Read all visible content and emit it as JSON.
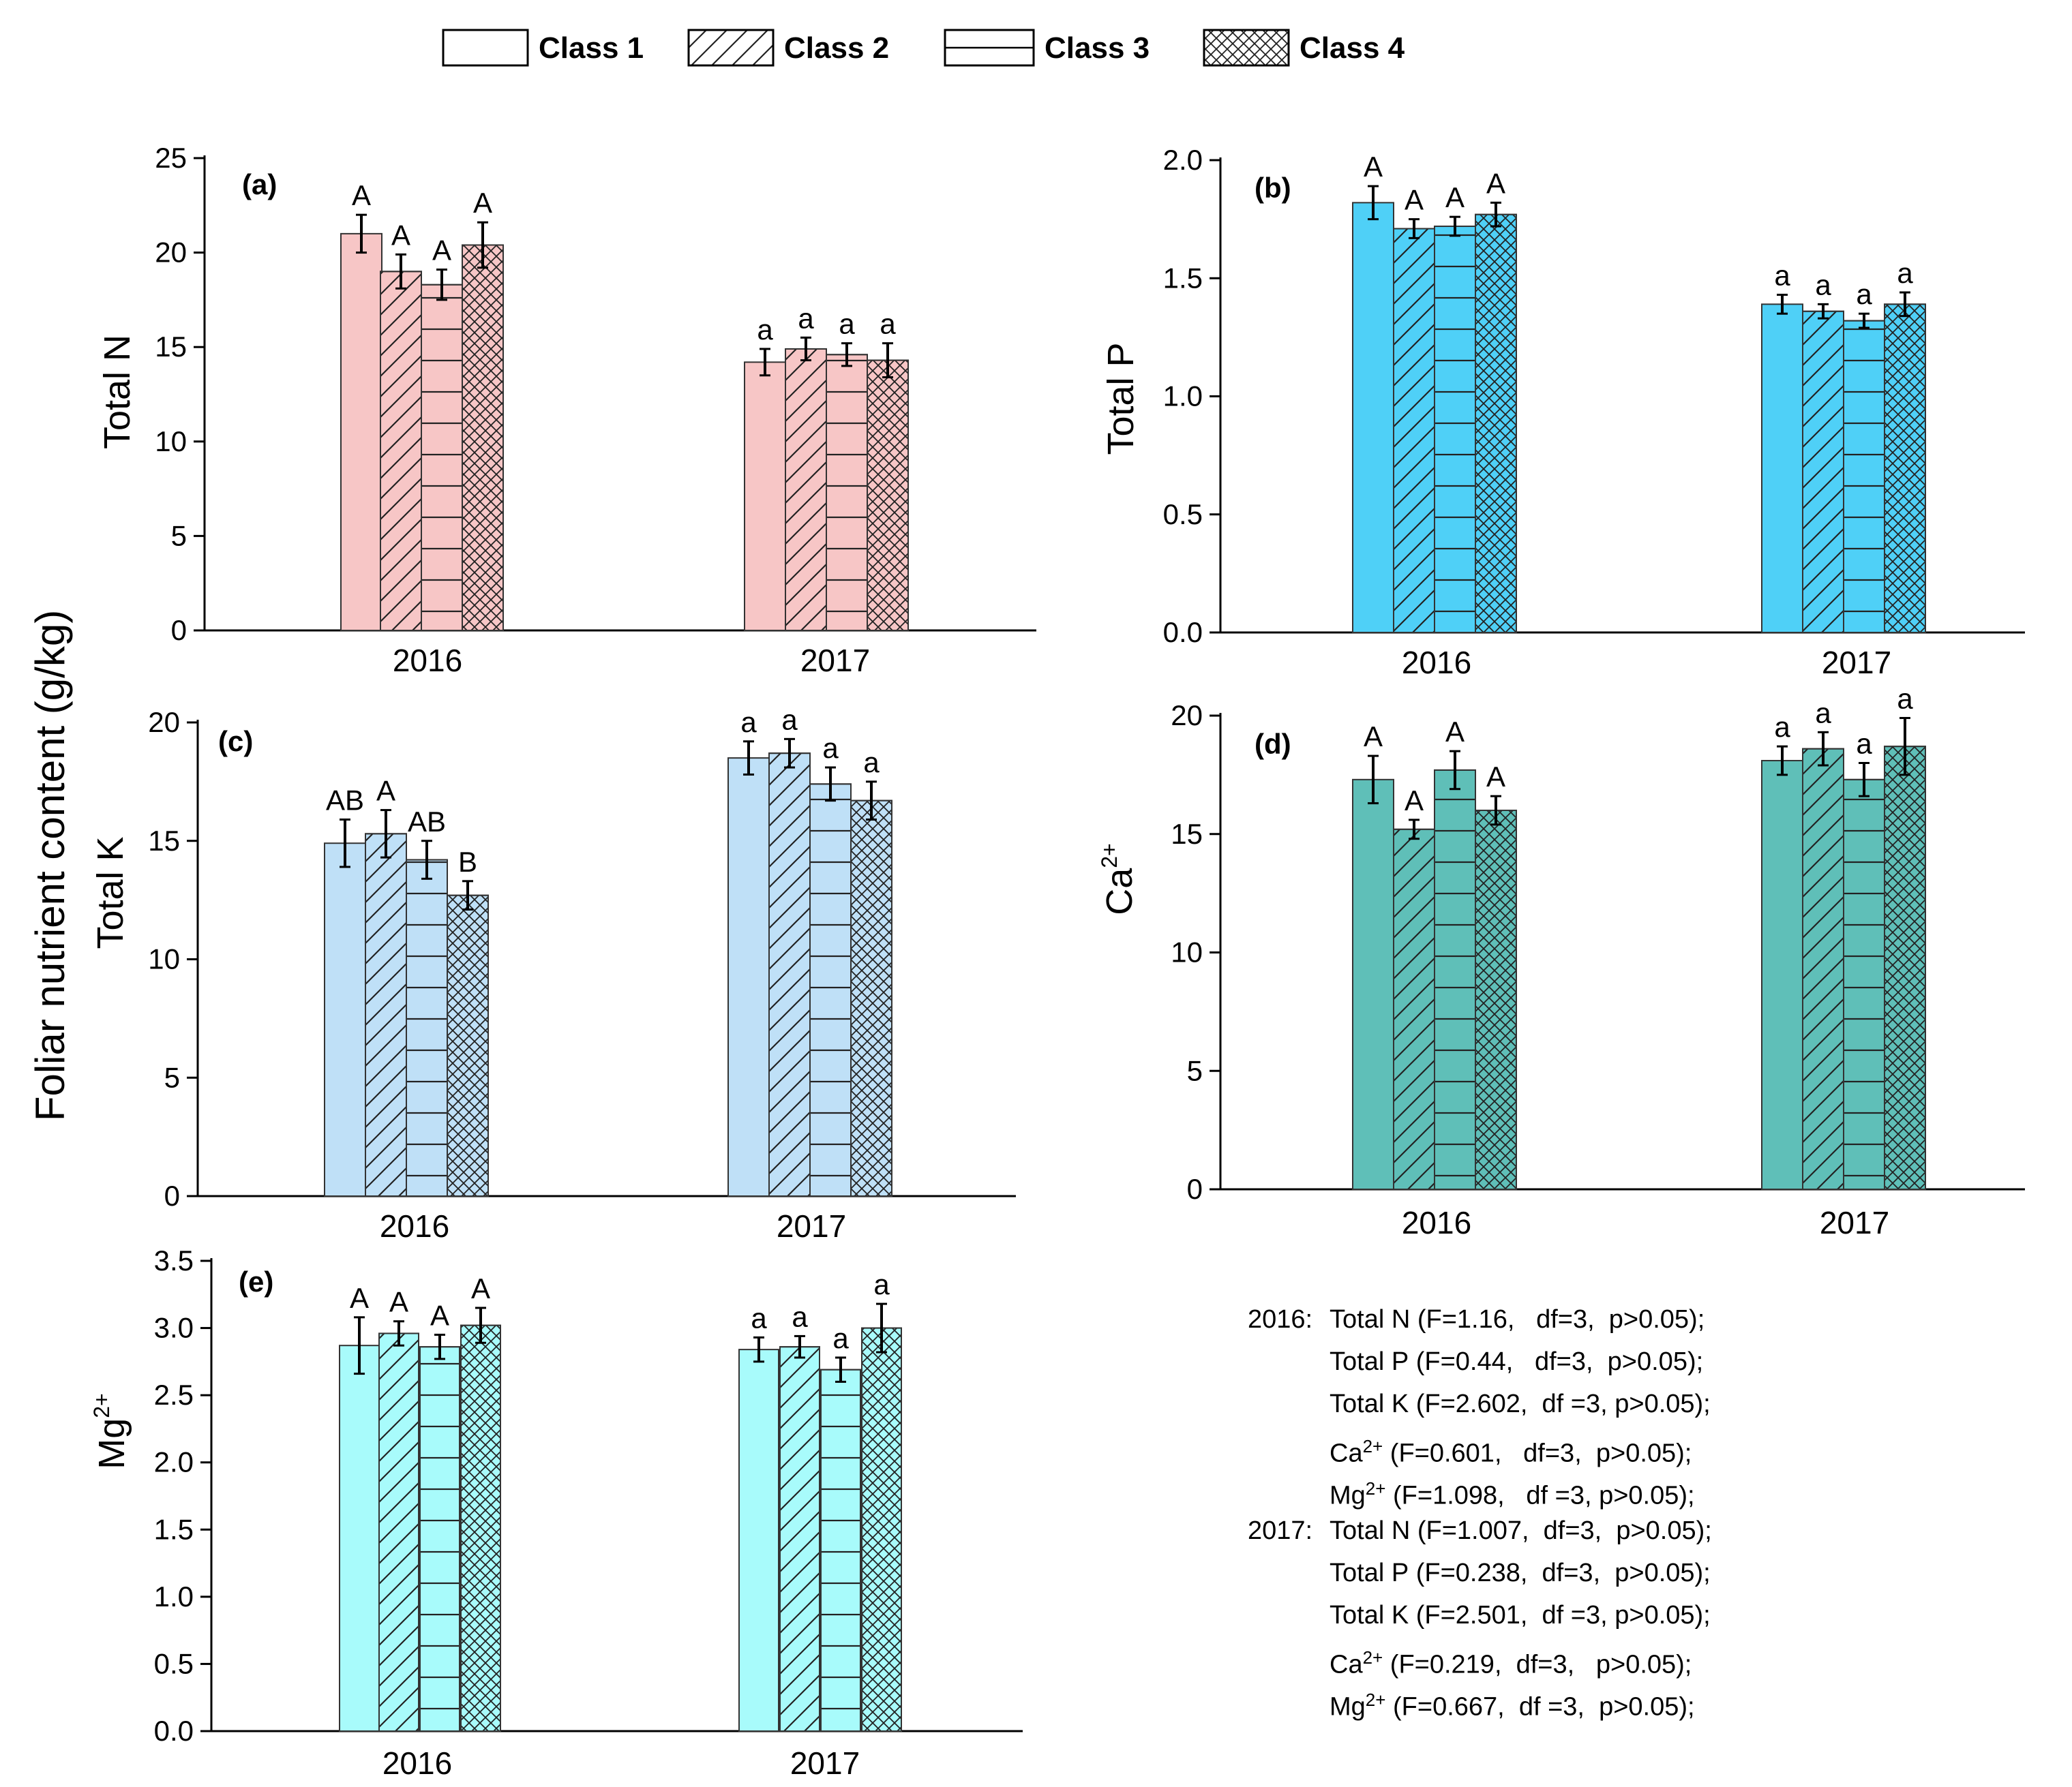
{
  "legend": [
    {
      "label": "Class 1",
      "pattern": "none"
    },
    {
      "label": "Class 2",
      "pattern": "diagonal"
    },
    {
      "label": "Class 3",
      "pattern": "horizontal"
    },
    {
      "label": "Class 4",
      "pattern": "crosshatch"
    }
  ],
  "shared_ylabel": "Foliar nutrient content (g/kg)",
  "chart_data": [
    {
      "type": "bar",
      "panel": "(a)",
      "ylabel": "Total N",
      "ylabel_sup": "",
      "color": "#f7c6c6",
      "categories": [
        "2016",
        "2017"
      ],
      "ylim": [
        0,
        25
      ],
      "yticks": [
        "0",
        "5",
        "10",
        "15",
        "20",
        "25"
      ],
      "ytick_values": [
        0,
        5,
        10,
        15,
        20,
        25
      ],
      "series": [
        {
          "name": "Class 1",
          "values": [
            21.0,
            14.2
          ],
          "errors": [
            1.0,
            0.7
          ]
        },
        {
          "name": "Class 2",
          "values": [
            19.0,
            14.9
          ],
          "errors": [
            0.9,
            0.6
          ]
        },
        {
          "name": "Class 3",
          "values": [
            18.3,
            14.6
          ],
          "errors": [
            0.8,
            0.6
          ]
        },
        {
          "name": "Class 4",
          "values": [
            20.4,
            14.3
          ],
          "errors": [
            1.2,
            0.9
          ]
        }
      ],
      "letters": [
        [
          "A",
          "A",
          "A",
          "A"
        ],
        [
          "a",
          "a",
          "a",
          "a"
        ]
      ]
    },
    {
      "type": "bar",
      "panel": "(b)",
      "ylabel": "Total P",
      "ylabel_sup": "",
      "color": "#4fd0f7",
      "categories": [
        "2016",
        "2017"
      ],
      "ylim": [
        0,
        2.0
      ],
      "yticks": [
        "0.0",
        "0.5",
        "1.0",
        "1.5",
        "2.0"
      ],
      "ytick_values": [
        0,
        0.5,
        1.0,
        1.5,
        2.0
      ],
      "series": [
        {
          "name": "Class 1",
          "values": [
            1.82,
            1.39
          ],
          "errors": [
            0.07,
            0.04
          ]
        },
        {
          "name": "Class 2",
          "values": [
            1.71,
            1.36
          ],
          "errors": [
            0.04,
            0.03
          ]
        },
        {
          "name": "Class 3",
          "values": [
            1.72,
            1.32
          ],
          "errors": [
            0.04,
            0.03
          ]
        },
        {
          "name": "Class 4",
          "values": [
            1.77,
            1.39
          ],
          "errors": [
            0.05,
            0.05
          ]
        }
      ],
      "letters": [
        [
          "A",
          "A",
          "A",
          "A"
        ],
        [
          "a",
          "a",
          "a",
          "a"
        ]
      ]
    },
    {
      "type": "bar",
      "panel": "(c)",
      "ylabel": "Total K",
      "ylabel_sup": "",
      "color": "#bfe0f7",
      "categories": [
        "2016",
        "2017"
      ],
      "ylim": [
        0,
        20
      ],
      "yticks": [
        "0",
        "5",
        "10",
        "15",
        "20"
      ],
      "ytick_values": [
        0,
        5,
        10,
        15,
        20
      ],
      "series": [
        {
          "name": "Class 1",
          "values": [
            14.9,
            18.5
          ],
          "errors": [
            1.0,
            0.7
          ]
        },
        {
          "name": "Class 2",
          "values": [
            15.3,
            18.7
          ],
          "errors": [
            1.0,
            0.6
          ]
        },
        {
          "name": "Class 3",
          "values": [
            14.2,
            17.4
          ],
          "errors": [
            0.8,
            0.7
          ]
        },
        {
          "name": "Class 4",
          "values": [
            12.7,
            16.7
          ],
          "errors": [
            0.6,
            0.8
          ]
        }
      ],
      "letters": [
        [
          "AB",
          "A",
          "AB",
          "B"
        ],
        [
          "a",
          "a",
          "a",
          "a"
        ]
      ]
    },
    {
      "type": "bar",
      "panel": "(d)",
      "ylabel": "Ca",
      "ylabel_sup": "2+",
      "color": "#5fbfb8",
      "categories": [
        "2016",
        "2017"
      ],
      "ylim": [
        0,
        20
      ],
      "yticks": [
        "0",
        "5",
        "10",
        "15",
        "20"
      ],
      "ytick_values": [
        0,
        5,
        10,
        15,
        20
      ],
      "series": [
        {
          "name": "Class 1",
          "values": [
            17.3,
            18.1
          ],
          "errors": [
            1.0,
            0.6
          ]
        },
        {
          "name": "Class 2",
          "values": [
            15.2,
            18.6
          ],
          "errors": [
            0.4,
            0.7
          ]
        },
        {
          "name": "Class 3",
          "values": [
            17.7,
            17.3
          ],
          "errors": [
            0.8,
            0.7
          ]
        },
        {
          "name": "Class 4",
          "values": [
            16.0,
            18.7
          ],
          "errors": [
            0.6,
            1.2
          ]
        }
      ],
      "letters": [
        [
          "A",
          "A",
          "A",
          "A"
        ],
        [
          "a",
          "a",
          "a",
          "a"
        ]
      ]
    },
    {
      "type": "bar",
      "panel": "(e)",
      "ylabel": "Mg",
      "ylabel_sup": "2+",
      "color": "#a8fbfb",
      "categories": [
        "2016",
        "2017"
      ],
      "ylim": [
        0,
        3.5
      ],
      "yticks": [
        "0.0",
        "0.5",
        "1.0",
        "1.5",
        "2.0",
        "2.5",
        "3.0",
        "3.5"
      ],
      "ytick_values": [
        0,
        0.5,
        1.0,
        1.5,
        2.0,
        2.5,
        3.0,
        3.5
      ],
      "series": [
        {
          "name": "Class 1",
          "values": [
            2.87,
            2.84
          ],
          "errors": [
            0.21,
            0.09
          ]
        },
        {
          "name": "Class 2",
          "values": [
            2.96,
            2.86
          ],
          "errors": [
            0.09,
            0.08
          ]
        },
        {
          "name": "Class 3",
          "values": [
            2.86,
            2.69
          ],
          "errors": [
            0.09,
            0.09
          ]
        },
        {
          "name": "Class 4",
          "values": [
            3.02,
            3.0
          ],
          "errors": [
            0.13,
            0.18
          ]
        }
      ],
      "letters": [
        [
          "A",
          "A",
          "A",
          "A"
        ],
        [
          "a",
          "a",
          "a",
          "a"
        ]
      ]
    }
  ],
  "stats": [
    {
      "year": "2016:",
      "name": "Total N",
      "sup": "",
      "detail": "(F=1.16,   df=3,  p>0.05);"
    },
    {
      "year": "",
      "name": "Total P",
      "sup": "",
      "detail": "(F=0.44,   df=3,  p>0.05);"
    },
    {
      "year": "",
      "name": "Total K",
      "sup": "",
      "detail": "(F=2.602,  df =3, p>0.05);"
    },
    {
      "year": "",
      "name": "Ca",
      "sup": "2+",
      "detail": "(F=0.601,   df=3,  p>0.05);"
    },
    {
      "year": "",
      "name": "Mg",
      "sup": "2+",
      "detail": "(F=1.098,   df =3, p>0.05);"
    },
    {
      "year": "2017:",
      "name": "Total N",
      "sup": "",
      "detail": "(F=1.007,  df=3,  p>0.05);"
    },
    {
      "year": "",
      "name": "Total P",
      "sup": "",
      "detail": "(F=0.238,  df=3,  p>0.05);"
    },
    {
      "year": "",
      "name": "Total K",
      "sup": "",
      "detail": "(F=2.501,  df =3, p>0.05);"
    },
    {
      "year": "",
      "name": "Ca",
      "sup": "2+",
      "detail": "(F=0.219,  df=3,   p>0.05);"
    },
    {
      "year": "",
      "name": "Mg",
      "sup": "2+",
      "detail": "(F=0.667,  df =3,  p>0.05);"
    }
  ]
}
